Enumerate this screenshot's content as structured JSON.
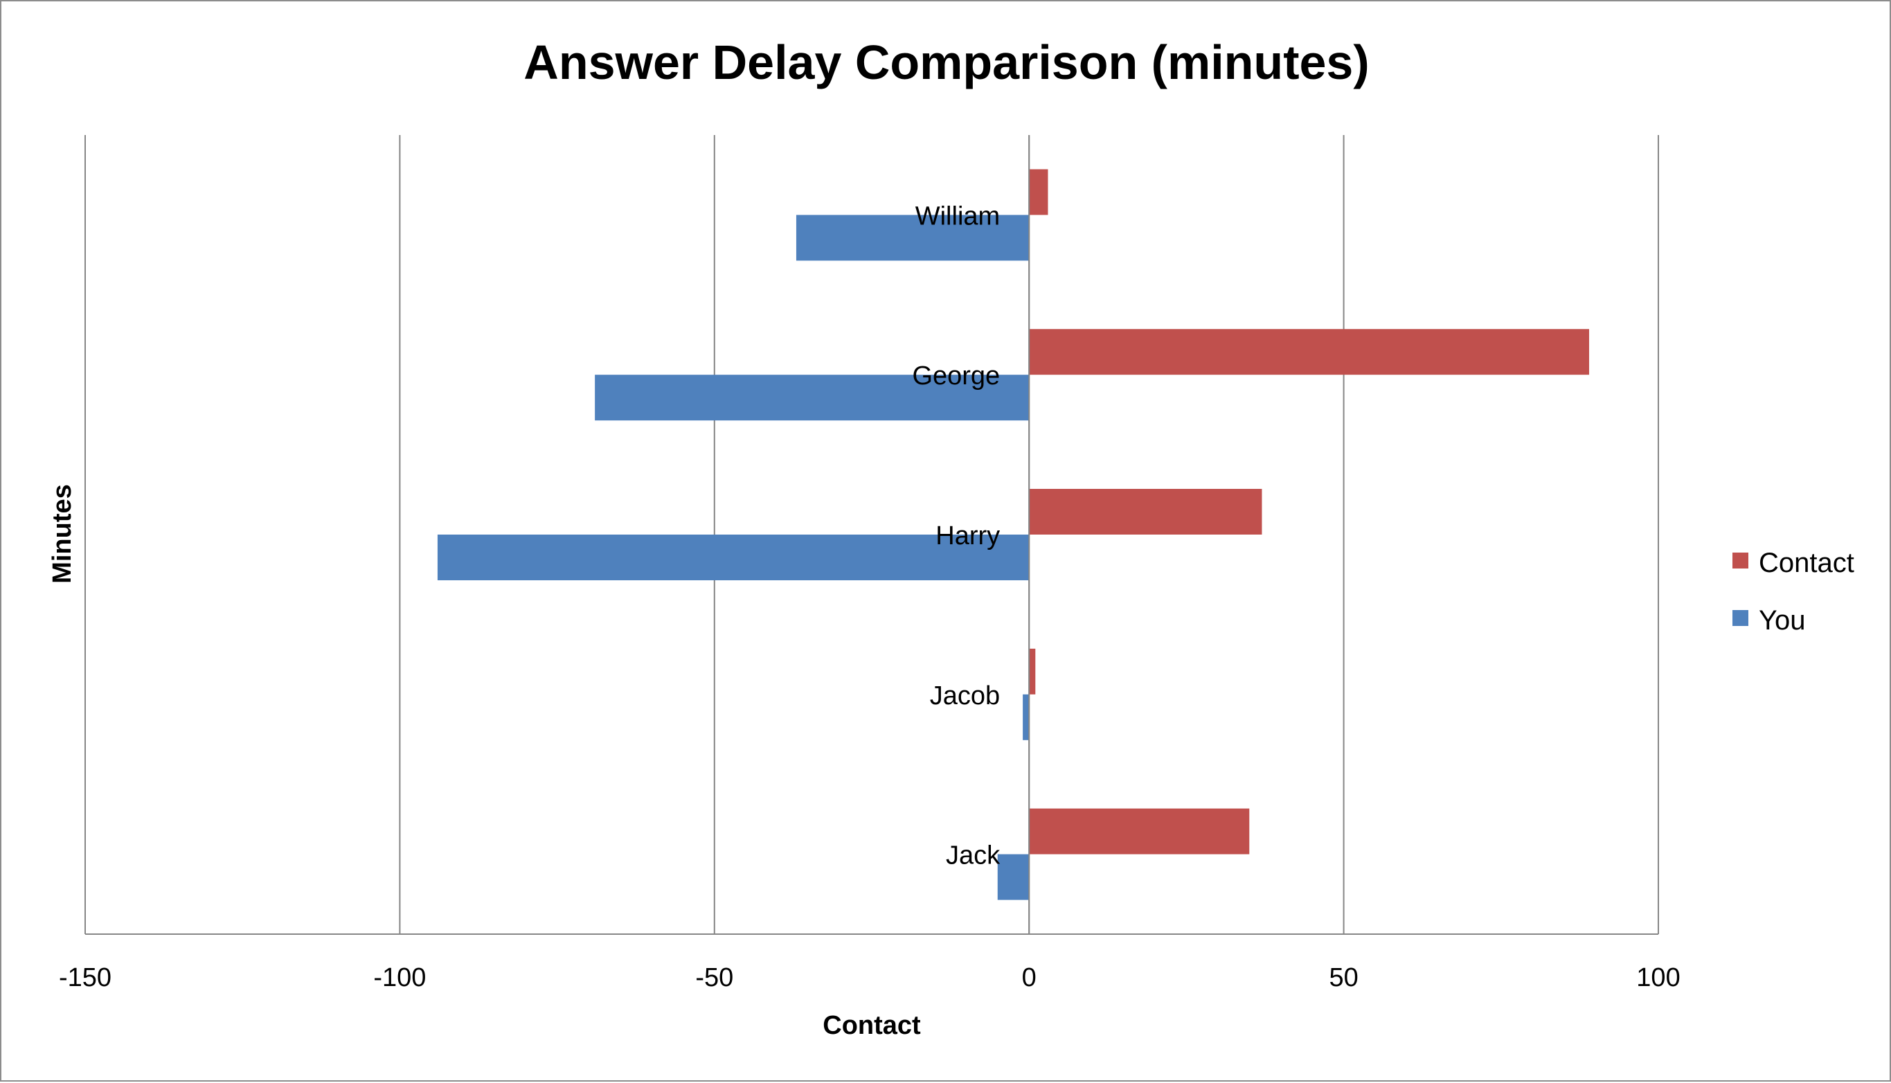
{
  "chart_data": {
    "type": "bar",
    "orientation": "horizontal",
    "title": "Answer Delay Comparison (minutes)",
    "xlabel": "Contact",
    "ylabel": "Minutes",
    "xlim": [
      -150,
      100
    ],
    "x_ticks": [
      -150,
      -100,
      -50,
      0,
      50,
      100
    ],
    "x_tick_labels": [
      "-150",
      "-100",
      "-50",
      "0",
      "50",
      "100"
    ],
    "grid": "vertical major gridlines",
    "legend_position": "right",
    "categories": [
      "William",
      "George",
      "Harry",
      "Jacob",
      "Jack"
    ],
    "series": [
      {
        "name": "Contact",
        "color": "#c0504d",
        "values": [
          3,
          89,
          37,
          1,
          35
        ]
      },
      {
        "name": "You",
        "color": "#4f81bd",
        "values": [
          -37,
          -69,
          -94,
          -1,
          -5
        ]
      }
    ]
  }
}
